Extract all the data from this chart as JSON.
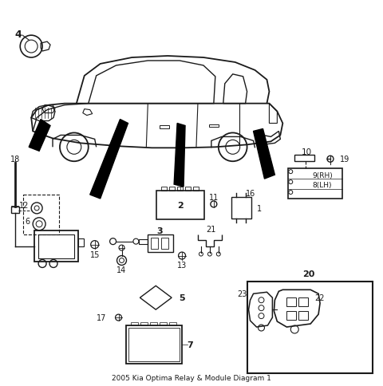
{
  "title": "2005 Kia Optima Relay & Module Diagram 1",
  "bg_color": "#ffffff",
  "line_color": "#1a1a1a",
  "fig_width": 4.8,
  "fig_height": 4.85,
  "dpi": 100
}
